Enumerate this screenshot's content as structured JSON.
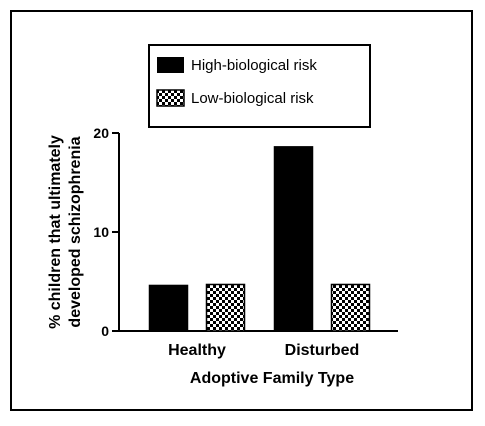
{
  "chart_data": {
    "type": "bar",
    "categories": [
      "Healthy",
      "Disturbed"
    ],
    "series": [
      {
        "name": "High-biological risk",
        "values": [
          4.6,
          18.6
        ],
        "fill": "solid",
        "color": "#000000"
      },
      {
        "name": "Low-biological risk",
        "values": [
          4.7,
          4.7
        ],
        "fill": "checkerboard",
        "color": "#000000"
      }
    ],
    "xlabel": "Adoptive Family Type",
    "ylabel": [
      "% children that ultimately",
      "developed schizophrenia"
    ],
    "ylim": [
      0,
      20
    ],
    "yticks": [
      0,
      10,
      20
    ],
    "legend_position": "top",
    "grid": false
  }
}
